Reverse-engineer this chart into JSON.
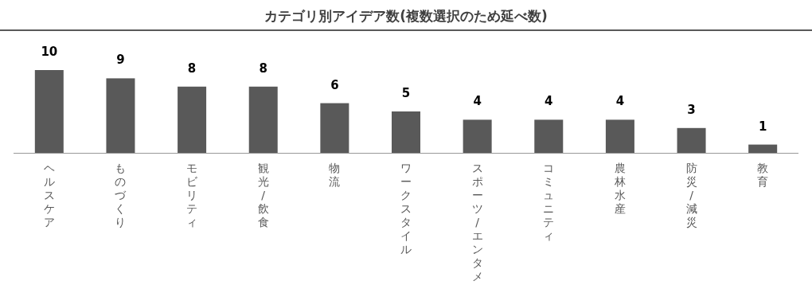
{
  "chart_data": {
    "type": "bar",
    "title": "カテゴリ別アイデア数(複数選択のため延べ数)",
    "categories": [
      "ヘルスケア",
      "ものづくり",
      "モビリティ",
      "観光/飲食",
      "物流",
      "ワークスタイル",
      "スポーツ/エンタメ",
      "コミュニティ",
      "農林水産",
      "防災/減災",
      "教育"
    ],
    "values": [
      10,
      9,
      8,
      8,
      6,
      5,
      4,
      4,
      4,
      3,
      1
    ],
    "color": "#595959",
    "data_labels": true
  }
}
